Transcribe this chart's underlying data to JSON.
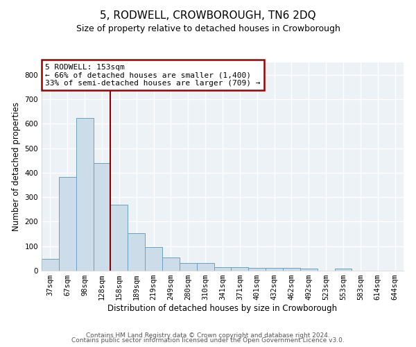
{
  "title": "5, RODWELL, CROWBOROUGH, TN6 2DQ",
  "subtitle": "Size of property relative to detached houses in Crowborough",
  "xlabel": "Distribution of detached houses by size in Crowborough",
  "ylabel": "Number of detached properties",
  "bar_color": "#ccdce8",
  "bar_edge_color": "#6aa0c0",
  "categories": [
    "37sqm",
    "67sqm",
    "98sqm",
    "128sqm",
    "158sqm",
    "189sqm",
    "219sqm",
    "249sqm",
    "280sqm",
    "310sqm",
    "341sqm",
    "371sqm",
    "401sqm",
    "432sqm",
    "462sqm",
    "492sqm",
    "523sqm",
    "553sqm",
    "583sqm",
    "614sqm",
    "644sqm"
  ],
  "values": [
    48,
    383,
    622,
    440,
    268,
    153,
    95,
    55,
    30,
    30,
    15,
    15,
    12,
    12,
    12,
    8,
    0,
    8,
    0,
    0,
    0
  ],
  "vline_x": 4.0,
  "vline_color": "#8b0000",
  "annotation_text": "5 RODWELL: 153sqm\n← 66% of detached houses are smaller (1,400)\n33% of semi-detached houses are larger (709) →",
  "annotation_box_color": "white",
  "annotation_box_edge": "#9b0000",
  "ylim": [
    0,
    850
  ],
  "yticks": [
    0,
    100,
    200,
    300,
    400,
    500,
    600,
    700,
    800
  ],
  "footer1": "Contains HM Land Registry data © Crown copyright and database right 2024.",
  "footer2": "Contains public sector information licensed under the Open Government Licence v3.0.",
  "background_color": "#edf2f7",
  "grid_color": "white",
  "title_fontsize": 11,
  "subtitle_fontsize": 9,
  "xlabel_fontsize": 8.5,
  "ylabel_fontsize": 8.5,
  "tick_fontsize": 7.5,
  "annotation_fontsize": 8,
  "footer_fontsize": 6.5
}
